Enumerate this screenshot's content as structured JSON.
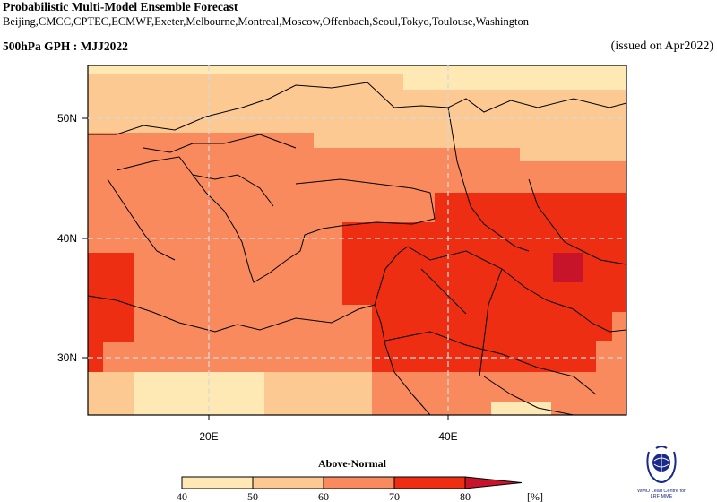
{
  "header": {
    "title": "Probabilistic Multi-Model Ensemble Forecast",
    "centres": "Beijing,CMCC,CPTEC,ECMWF,Exeter,Melbourne,Montreal,Moscow,Offenbach,Seoul,Tokyo,Toulouse,Washington",
    "subtitle": "500hPa GPH : MJJ2022",
    "issued": "(issued on Apr2022)"
  },
  "map": {
    "lat_labels": [
      "50N",
      "40N",
      "30N"
    ],
    "lon_labels": [
      "20E",
      "40E"
    ],
    "category": "Above-Normal"
  },
  "legend": {
    "title": "Above-Normal",
    "ticks": [
      "40",
      "50",
      "60",
      "70",
      "80"
    ],
    "unit": "[%]",
    "colors": [
      "#fee8b4",
      "#fdc992",
      "#f98a5e",
      "#ee2e12",
      "#c7142a"
    ]
  },
  "logo": {
    "line1": "WMO Lead Centre for",
    "line2": "LRF MME"
  }
}
